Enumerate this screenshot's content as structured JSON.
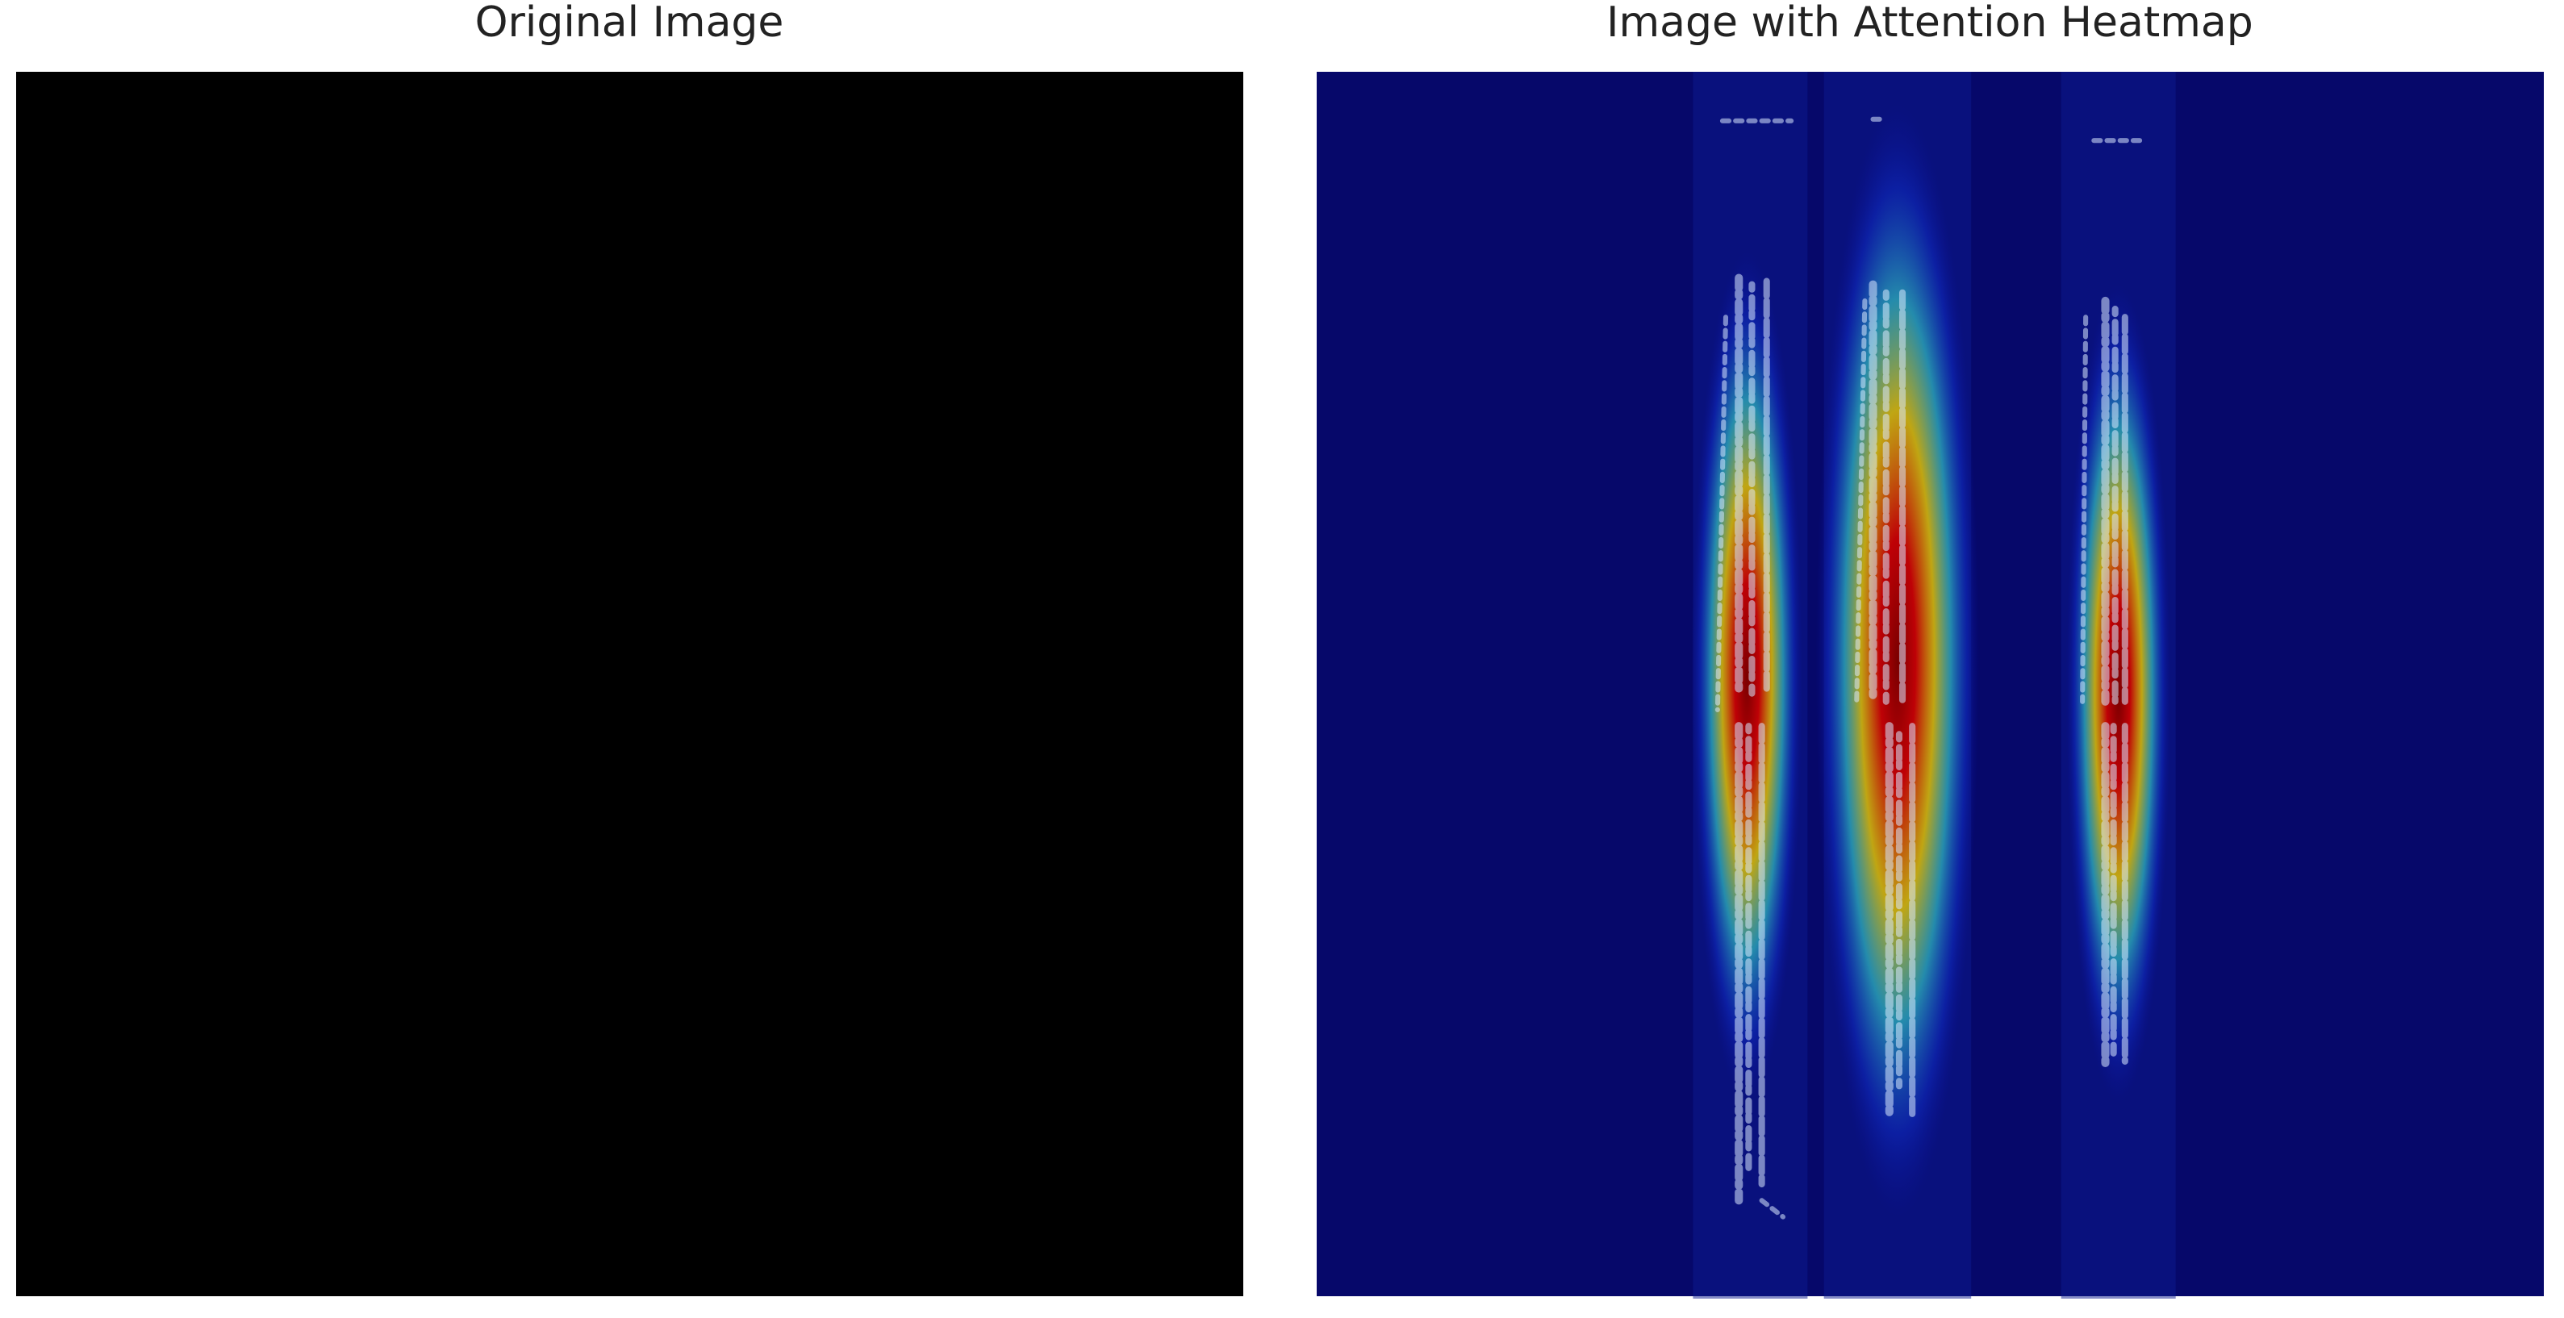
{
  "panels": [
    {
      "title": "Original Image"
    },
    {
      "title": "Image with Attention Heatmap"
    }
  ]
}
